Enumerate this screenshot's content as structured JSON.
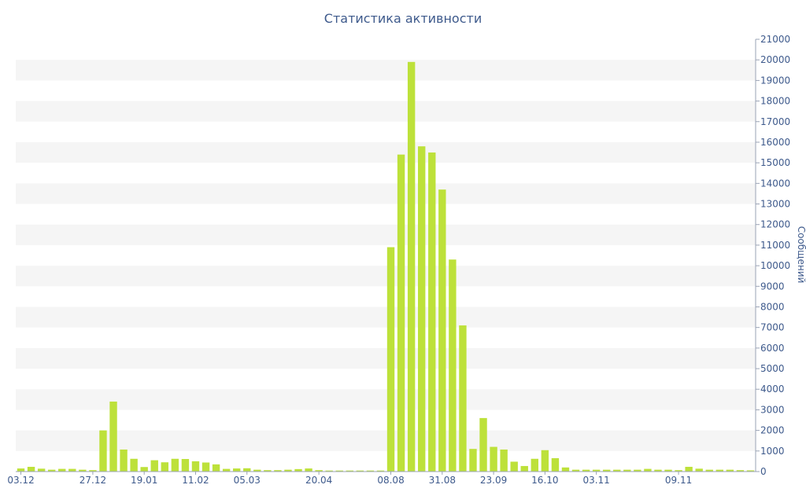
{
  "chart_data": {
    "type": "bar",
    "title": "Статистика активности",
    "ylabel": "Сообщений",
    "xlabel": "",
    "ylim": [
      0,
      21000
    ],
    "ytick_step": 1000,
    "grid": "alternating horizontal bands",
    "y_axis_side": "right",
    "colors": {
      "bar": "#bde13a",
      "band": "#f5f5f5",
      "text": "#3e5a8c",
      "axis": "#9aa3b5"
    },
    "x_tick_labels": [
      "03.12",
      "27.12",
      "19.01",
      "11.02",
      "05.03",
      "20.04",
      "08.08",
      "31.08",
      "23.09",
      "16.10",
      "03.11",
      "09.11"
    ],
    "x_tick_bar_index": [
      0,
      7,
      12,
      17,
      22,
      29,
      36,
      41,
      46,
      51,
      56,
      64
    ],
    "series": [
      {
        "values": [
          150,
          230,
          140,
          90,
          130,
          130,
          90,
          70,
          2000,
          3400,
          1070,
          620,
          220,
          550,
          450,
          620,
          610,
          500,
          440,
          350,
          130,
          150,
          160,
          90,
          70,
          70,
          90,
          120,
          150,
          70,
          50,
          50,
          50,
          50,
          50,
          50,
          10900,
          15400,
          19900,
          15800,
          15500,
          13700,
          10300,
          7100,
          1100,
          2600,
          1200,
          1070,
          480,
          270,
          620,
          1040,
          650,
          200,
          90,
          90,
          90,
          90,
          90,
          90,
          90,
          130,
          90,
          90,
          70,
          230,
          140,
          90,
          90,
          90,
          70,
          60
        ]
      }
    ]
  }
}
